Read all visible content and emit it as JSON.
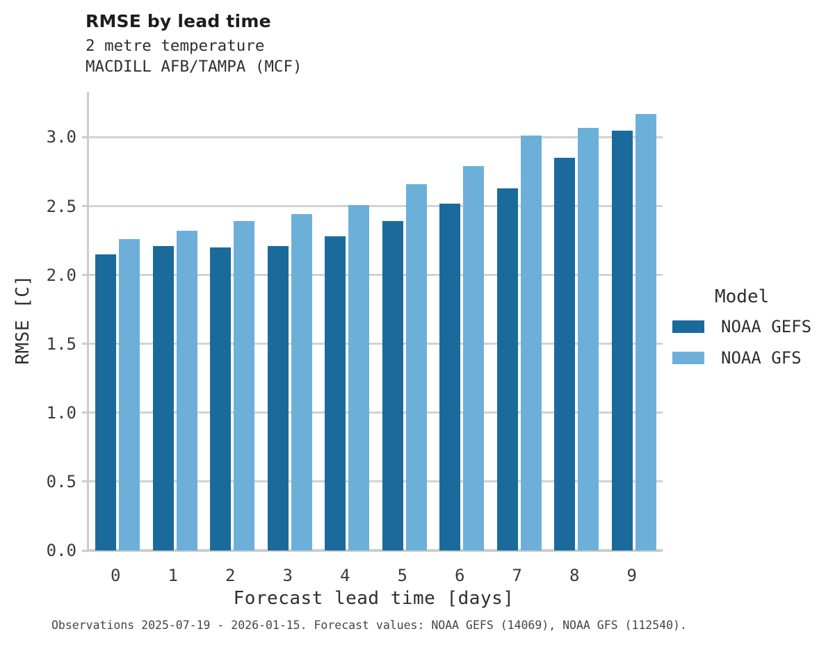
{
  "title": "RMSE by lead time",
  "subtitle_line1": "2 metre temperature",
  "subtitle_line2": "MACDILL AFB/TAMPA (MCF)",
  "footer": "Observations 2025-07-19 - 2026-01-15. Forecast values: NOAA GEFS (14069), NOAA GFS (112540).",
  "legend": {
    "title": "Model",
    "entries": [
      {
        "label": "NOAA GEFS",
        "color": "#1a6b9c"
      },
      {
        "label": "NOAA GFS",
        "color": "#6cb0d9"
      }
    ]
  },
  "colors": {
    "gefs_bar": "#1a6b9c",
    "gfs_bar": "#6cb0d9",
    "gridline": "#d2d2d2",
    "axis_spine": "#cccccc",
    "title_text": "#1c1c1c",
    "tick_text": "#3a3a3a"
  },
  "chart_data": {
    "type": "bar",
    "title": "RMSE by lead time",
    "subtitle": [
      "2 metre temperature",
      "MACDILL AFB/TAMPA (MCF)"
    ],
    "xlabel": "Forecast lead time [days]",
    "ylabel": "RMSE [C]",
    "categories": [
      "0",
      "1",
      "2",
      "3",
      "4",
      "5",
      "6",
      "7",
      "8",
      "9"
    ],
    "series": [
      {
        "name": "NOAA GEFS",
        "color": "#1a6b9c",
        "values": [
          2.15,
          2.21,
          2.2,
          2.21,
          2.28,
          2.39,
          2.52,
          2.63,
          2.85,
          3.05
        ]
      },
      {
        "name": "NOAA GFS",
        "color": "#6cb0d9",
        "values": [
          2.26,
          2.32,
          2.39,
          2.44,
          2.51,
          2.66,
          2.79,
          3.01,
          3.07,
          3.17
        ]
      }
    ],
    "ylim": [
      0,
      3.33
    ],
    "yticks": [
      0.0,
      0.5,
      1.0,
      1.5,
      2.0,
      2.5,
      3.0
    ],
    "grid": true,
    "legend_title": "Model",
    "legend_position": "right",
    "caption": "Observations 2025-07-19 - 2026-01-15. Forecast values: NOAA GEFS (14069), NOAA GFS (112540)."
  }
}
